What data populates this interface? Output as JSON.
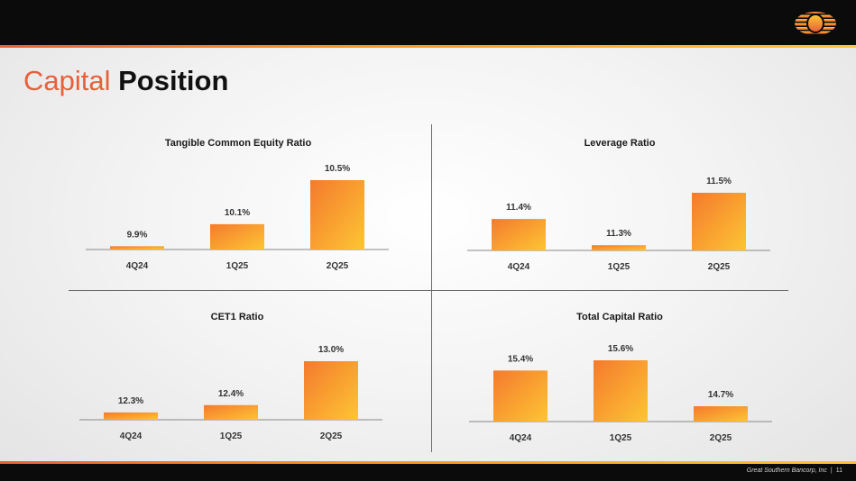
{
  "title": {
    "part1": "Capital",
    "part2": "Position"
  },
  "footer": {
    "company": "Great Southern Bancorp, Inc",
    "separator": "|",
    "page": "11"
  },
  "colors": {
    "accent": "#e8603a",
    "bar_top": "#f47a2e",
    "bar_bottom": "#fdc533"
  },
  "chart_data": [
    {
      "type": "bar",
      "title": "Tangible Common Equity Ratio",
      "categories": [
        "4Q24",
        "1Q25",
        "2Q25"
      ],
      "values": [
        9.9,
        10.1,
        10.5
      ],
      "value_labels": [
        "9.9%",
        "10.1%",
        "10.5%"
      ],
      "xlabel": "",
      "ylabel": ""
    },
    {
      "type": "bar",
      "title": "Leverage Ratio",
      "categories": [
        "4Q24",
        "1Q25",
        "2Q25"
      ],
      "values": [
        11.4,
        11.3,
        11.5
      ],
      "value_labels": [
        "11.4%",
        "11.3%",
        "11.5%"
      ],
      "xlabel": "",
      "ylabel": ""
    },
    {
      "type": "bar",
      "title": "CET1 Ratio",
      "categories": [
        "4Q24",
        "1Q25",
        "2Q25"
      ],
      "values": [
        12.3,
        12.4,
        13.0
      ],
      "value_labels": [
        "12.3%",
        "12.4%",
        "13.0%"
      ],
      "xlabel": "",
      "ylabel": ""
    },
    {
      "type": "bar",
      "title": "Total Capital Ratio",
      "categories": [
        "4Q24",
        "1Q25",
        "2Q25"
      ],
      "values": [
        15.4,
        15.6,
        14.7
      ],
      "value_labels": [
        "15.4%",
        "15.6%",
        "14.7%"
      ],
      "xlabel": "",
      "ylabel": ""
    }
  ]
}
